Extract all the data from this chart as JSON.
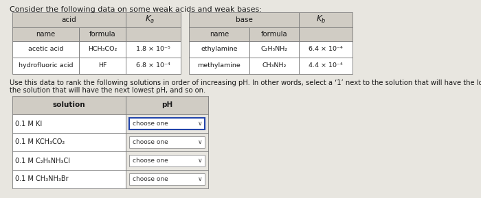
{
  "title": "Consider the following data on some weak acids and weak bases:",
  "title_fontsize": 8.0,
  "acid_data": [
    [
      "acetic acid",
      "HCH₃CO₂",
      "1.8 × 10⁻⁵"
    ],
    [
      "hydrofluoric acid",
      "HF",
      "6.8 × 10⁻⁴"
    ]
  ],
  "base_data": [
    [
      "ethylamine",
      "C₂H₅NH₂",
      "6.4 × 10⁻⁴"
    ],
    [
      "methylamine",
      "CH₃NH₂",
      "4.4 × 10⁻⁴"
    ]
  ],
  "instruction_line1": "Use this data to rank the following solutions in order of increasing pH. In other words, select a ‘1’ next to the solution that will have the lowest pH, a ‘2’ next to",
  "instruction_line2": "the solution that will have the next lowest pH, and so on.",
  "instruction_fontsize": 7.2,
  "solutions": [
    "0.1 Μ KI",
    "0.1 Μ KCH₃CO₂",
    "0.1 Μ C₂H₅NH₃Cl",
    "0.1 Μ CH₃NH₃Br"
  ],
  "bg_color": "#e8e6e0",
  "table_bg": "#ffffff",
  "header_bg": "#d0ccc4",
  "border_color": "#777777",
  "text_color": "#1a1a1a",
  "dropdown_border_active": "#2244aa",
  "dropdown_border_inactive": "#999999"
}
